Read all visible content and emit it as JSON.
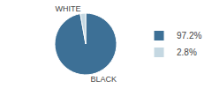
{
  "chart_data": {
    "type": "pie",
    "categories": [
      "BLACK",
      "WHITE"
    ],
    "values": [
      97.2,
      2.8
    ],
    "value_labels": [
      "97.2%",
      "2.8%"
    ],
    "colors": [
      "#3d7096",
      "#c5d8e2"
    ],
    "legend": "right"
  }
}
